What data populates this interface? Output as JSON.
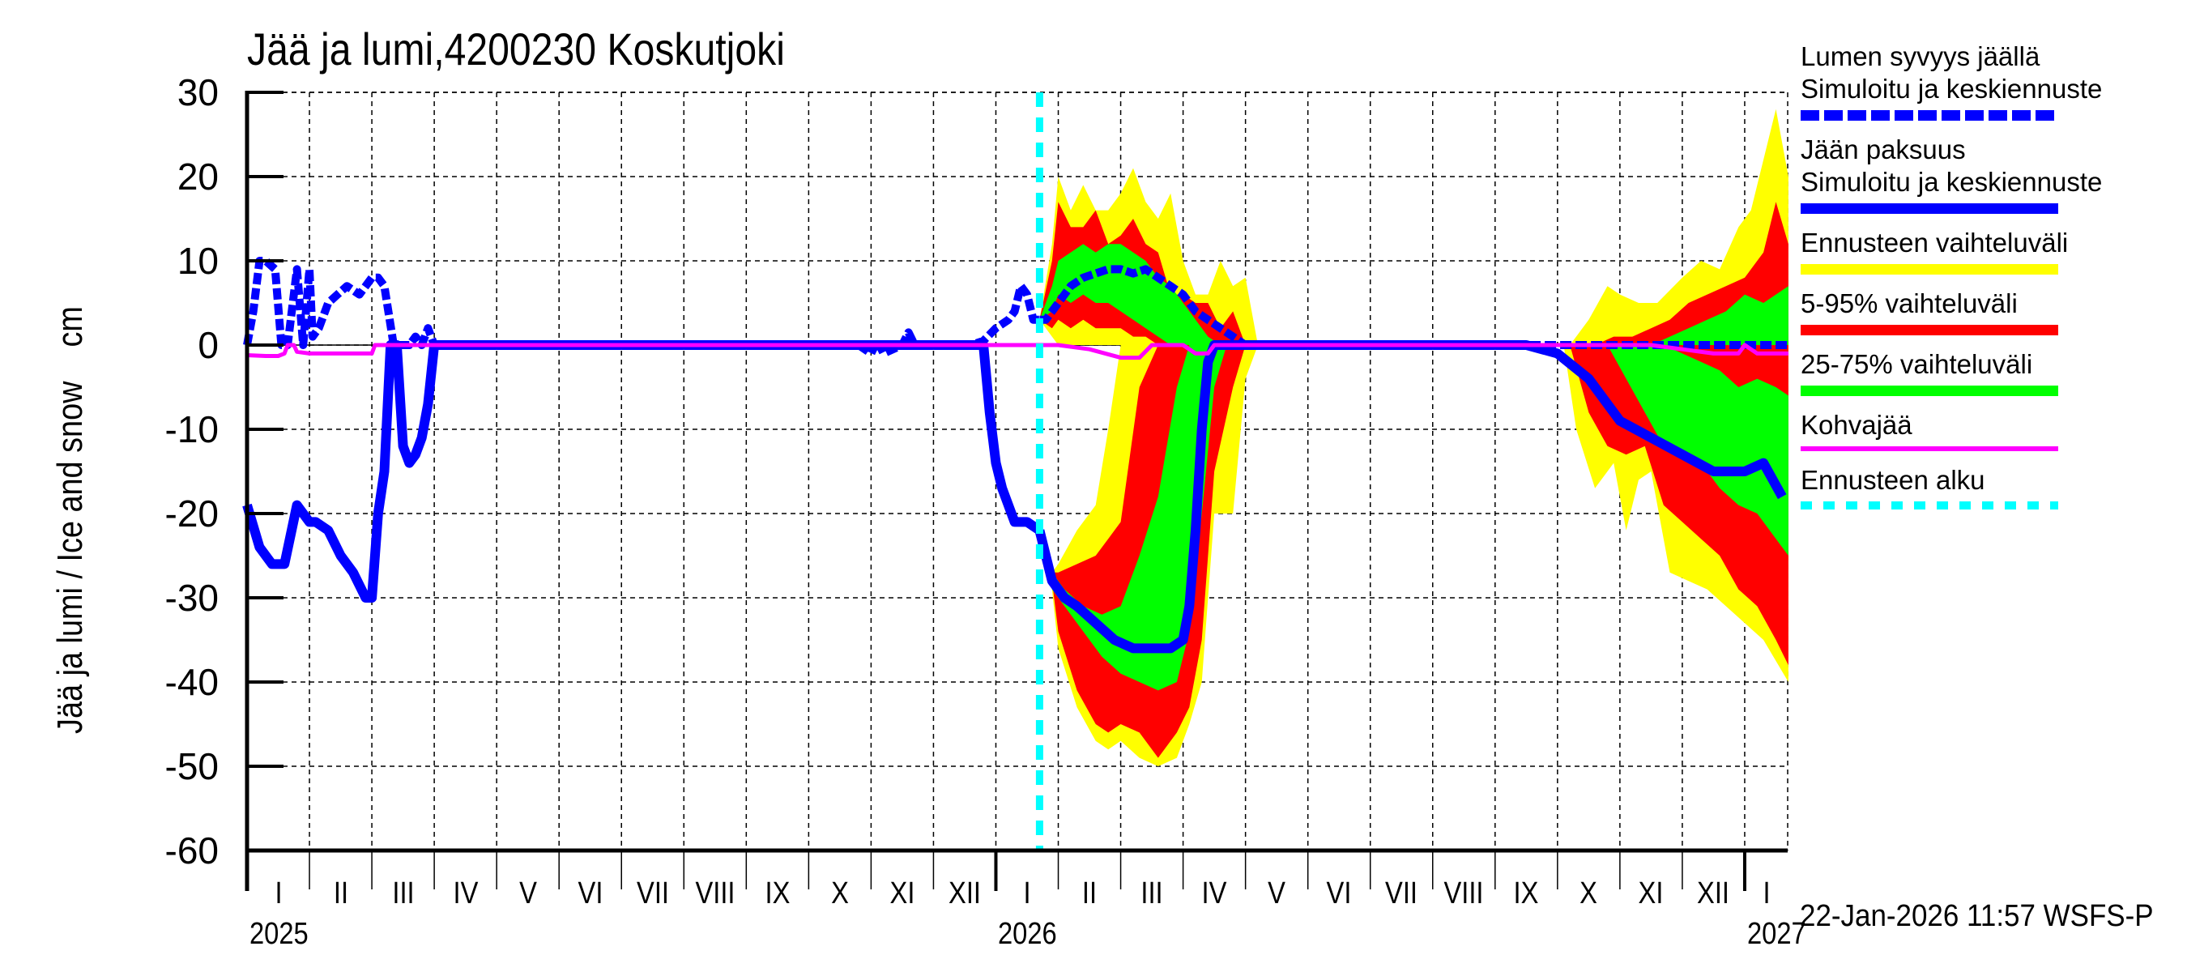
{
  "title": "Jää ja lumi,4200230 Koskutjoki",
  "ylabel": "Jää ja lumi / Ice and snow    cm",
  "timestamp": "22-Jan-2026 11:57 WSFS-P",
  "legend": [
    {
      "label1": "Lumen syvyys jäällä",
      "label2": "Simuloitu ja keskiennuste",
      "color": "#0000ff",
      "style": "dashed"
    },
    {
      "label1": "Jään paksuus",
      "label2": "Simuloitu ja keskiennuste",
      "color": "#0000ff",
      "style": "solid"
    },
    {
      "label1": "Ennusteen vaihteluväli",
      "label2": "",
      "color": "#ffff00",
      "style": "solid"
    },
    {
      "label1": "5-95% vaihteluväli",
      "label2": "",
      "color": "#ff0000",
      "style": "solid"
    },
    {
      "label1": "25-75% vaihteluväli",
      "label2": "",
      "color": "#00ff00",
      "style": "solid"
    },
    {
      "label1": "Kohvajää",
      "label2": "",
      "color": "#ff00ff",
      "style": "thin"
    },
    {
      "label1": "Ennusteen alku",
      "label2": "",
      "color": "#00ffff",
      "style": "dotted"
    }
  ],
  "chart_data": {
    "type": "area",
    "title": "Jää ja lumi,4200230 Koskutjoki",
    "xlabel": "",
    "ylabel": "Jää ja lumi / Ice and snow    cm",
    "ylim": [
      -60,
      30
    ],
    "yticks": [
      30,
      20,
      10,
      0,
      -10,
      -20,
      -30,
      -40,
      -50,
      -60
    ],
    "grid": true,
    "legend_position": "right",
    "x_unit": "months since 2025-01-01",
    "xlim": [
      0,
      24.7
    ],
    "month_labels": [
      "I",
      "II",
      "III",
      "IV",
      "V",
      "VI",
      "VII",
      "VIII",
      "IX",
      "X",
      "XI",
      "XII",
      "I",
      "II",
      "III",
      "IV",
      "V",
      "VI",
      "VII",
      "VIII",
      "IX",
      "X",
      "XI",
      "XII",
      "I"
    ],
    "year_labels": [
      {
        "label": "2025",
        "x": 0
      },
      {
        "label": "2026",
        "x": 12
      },
      {
        "label": "2027",
        "x": 24
      }
    ],
    "forecast_start": 12.7,
    "series": [
      {
        "name": "Lumen syvyys jäällä (simuloitu)",
        "color": "#0000ff",
        "style": "dashed",
        "x": [
          0,
          0.1,
          0.2,
          0.3,
          0.45,
          0.55,
          0.65,
          0.8,
          0.9,
          1.0,
          1.05,
          1.15,
          1.3,
          1.45,
          1.6,
          1.8,
          2.0,
          2.1,
          2.2,
          2.35,
          2.5,
          2.6,
          2.7,
          2.8,
          2.9,
          3.0,
          3.2,
          3.5,
          4.5,
          6,
          8,
          9,
          9.8,
          10.0,
          10.1,
          10.2,
          10.5,
          10.6,
          10.7,
          11.0,
          11.4,
          11.6,
          11.8,
          12.0,
          12.2,
          12.3,
          12.4,
          12.5,
          12.6,
          12.7
        ],
        "y": [
          0,
          4,
          10,
          10,
          9,
          0,
          0,
          9,
          0,
          9,
          1,
          2,
          5,
          6,
          7,
          6,
          8,
          8,
          7,
          0,
          0,
          0,
          1,
          0,
          2,
          0,
          0,
          0,
          0,
          0,
          0,
          0,
          0,
          -1,
          0.5,
          -1,
          0,
          1.5,
          0,
          0,
          0,
          0,
          0.5,
          2,
          3,
          4,
          7,
          6,
          3,
          3
        ]
      },
      {
        "name": "Lumen syvyys jäällä (keskiennuste)",
        "color": "#0000ff",
        "style": "dashed",
        "x": [
          12.7,
          12.8,
          13.0,
          13.2,
          13.4,
          13.6,
          13.8,
          14.0,
          14.2,
          14.4,
          14.6,
          14.8,
          15.0,
          15.2,
          15.4,
          15.6,
          15.8,
          16.0,
          16.2,
          24,
          24.7
        ],
        "y": [
          3,
          3,
          5,
          7,
          8,
          8.5,
          9,
          9,
          8.5,
          9,
          8,
          7,
          6,
          4,
          3,
          2,
          1,
          0,
          0,
          0,
          0
        ]
      },
      {
        "name": "Jään paksuus (simuloitu)",
        "color": "#0000ff",
        "style": "solid",
        "x": [
          0,
          0.2,
          0.4,
          0.6,
          0.8,
          1.0,
          1.1,
          1.3,
          1.5,
          1.7,
          1.9,
          2.0,
          2.1,
          2.2,
          2.3,
          2.4,
          2.5,
          2.6,
          2.7,
          2.8,
          2.9,
          3.0,
          3.1,
          3.2,
          3.3,
          3.5,
          11.5,
          11.8,
          11.9,
          12.0,
          12.1,
          12.3,
          12.5,
          12.7
        ],
        "y": [
          -19,
          -24,
          -26,
          -26,
          -19,
          -21,
          -21,
          -22,
          -25,
          -27,
          -30,
          -30,
          -20,
          -15,
          0,
          0,
          -12,
          -14,
          -13,
          -11,
          -7,
          0,
          0,
          0,
          0,
          0,
          0,
          0,
          -8,
          -14,
          -17,
          -21,
          -21,
          -22
        ]
      },
      {
        "name": "Jään paksuus (keskiennuste)",
        "color": "#0000ff",
        "style": "solid",
        "x": [
          12.7,
          12.9,
          13.1,
          13.3,
          13.6,
          13.9,
          14.2,
          14.5,
          14.8,
          15.0,
          15.1,
          15.2,
          15.3,
          15.4,
          15.5,
          15.6,
          16.0,
          20.5,
          21.0,
          21.5,
          22.0,
          22.5,
          23.0,
          23.5,
          24.0,
          24.3,
          24.6
        ],
        "y": [
          -22,
          -28,
          -30,
          -31,
          -33,
          -35,
          -36,
          -36,
          -36,
          -35,
          -31,
          -22,
          -10,
          -2,
          0,
          0,
          0,
          0,
          -1,
          -4,
          -9,
          -11,
          -13,
          -15,
          -15,
          -14,
          -18
        ]
      },
      {
        "name": "Kohvajää",
        "color": "#ff00ff",
        "style": "thin",
        "x": [
          0,
          0.3,
          0.5,
          0.6,
          0.65,
          0.75,
          0.8,
          1.0,
          1.8,
          2.0,
          2.05,
          2.1,
          13.0,
          13.5,
          14.0,
          14.3,
          14.5,
          14.7,
          15.0,
          15.2,
          15.4,
          15.5,
          15.6,
          22.5,
          23.0,
          23.5,
          23.9,
          24.0,
          24.2,
          24.7
        ],
        "y": [
          -1.2,
          -1.3,
          -1.3,
          -1.0,
          0,
          0,
          -0.8,
          -1.0,
          -1.0,
          -1.0,
          0,
          0,
          0,
          -0.5,
          -1.5,
          -1.5,
          0,
          0,
          0,
          -1.0,
          -1.0,
          0,
          0,
          0,
          -0.5,
          -1.0,
          -1.0,
          0,
          -1.0,
          -1.0
        ]
      }
    ],
    "bands": [
      {
        "name": "Ennusteen vaihteluväli (snow)",
        "color": "#ffff00",
        "x": [
          12.7,
          12.9,
          13.0,
          13.2,
          13.4,
          13.6,
          13.8,
          14.0,
          14.2,
          14.4,
          14.6,
          14.8,
          15.0,
          15.2,
          15.4,
          15.6,
          15.8,
          16.0,
          16.2
        ],
        "upper": [
          3,
          12,
          20,
          16,
          19,
          16,
          16,
          18,
          21,
          17,
          15,
          18,
          10,
          6,
          6,
          10,
          7,
          8,
          0
        ],
        "lower": [
          3,
          1,
          0,
          0,
          0,
          0,
          0,
          0,
          0,
          0,
          0,
          0,
          0,
          0,
          0,
          0,
          0,
          0,
          0
        ]
      },
      {
        "name": "5-95% vaihteluväli (snow)",
        "color": "#ff0000",
        "x": [
          12.7,
          12.9,
          13.0,
          13.2,
          13.4,
          13.6,
          13.8,
          14.0,
          14.2,
          14.4,
          14.6,
          14.8,
          15.0,
          15.2,
          15.4,
          15.6,
          15.8,
          16.0
        ],
        "upper": [
          3,
          10,
          17,
          14,
          14,
          16,
          12,
          13,
          15,
          12,
          11,
          6,
          6,
          5,
          5,
          2,
          4,
          0
        ],
        "lower": [
          3,
          2,
          3,
          2,
          3,
          2,
          2,
          2,
          1,
          1,
          0,
          0,
          0,
          0,
          0,
          0,
          0,
          0
        ]
      },
      {
        "name": "25-75% vaihteluväli (snow)",
        "color": "#00ff00",
        "x": [
          12.7,
          12.9,
          13.0,
          13.2,
          13.4,
          13.6,
          13.8,
          14.0,
          14.2,
          14.4,
          14.6,
          14.8,
          15.0,
          15.2,
          15.4,
          15.6
        ],
        "upper": [
          3,
          7,
          10,
          11,
          12,
          11,
          12,
          12,
          11,
          10,
          8,
          7,
          5,
          3,
          1,
          0
        ],
        "lower": [
          3,
          4,
          6,
          5,
          6,
          5,
          5,
          4,
          3,
          2,
          1,
          0,
          0,
          0,
          0,
          0
        ]
      },
      {
        "name": "Ennusteen vaihteluväli (ice)",
        "color": "#ffff00",
        "x": [
          12.7,
          12.9,
          13.0,
          13.3,
          13.6,
          13.8,
          14.0,
          14.3,
          14.6,
          14.9,
          15.1,
          15.3,
          15.5,
          15.8,
          16.0,
          16.2
        ],
        "upper": [
          -22,
          -27,
          -26,
          -22,
          -19,
          -10,
          0,
          0,
          0,
          0,
          0,
          0,
          0,
          0,
          0,
          0
        ],
        "lower": [
          -22,
          -29,
          -36,
          -43,
          -47,
          -48,
          -47,
          -49,
          -50,
          -49,
          -45,
          -40,
          -20,
          -20,
          -4,
          0
        ]
      },
      {
        "name": "5-95% vaihteluväli (ice)",
        "color": "#ff0000",
        "x": [
          12.7,
          12.9,
          13.0,
          13.3,
          13.6,
          13.8,
          14.0,
          14.3,
          14.6,
          14.9,
          15.1,
          15.3,
          15.5,
          15.8,
          16.0
        ],
        "upper": [
          -22,
          -27,
          -27,
          -26,
          -25,
          -23,
          -21,
          -5,
          0,
          0,
          0,
          0,
          0,
          0,
          0
        ],
        "lower": [
          -22,
          -28,
          -34,
          -41,
          -45,
          -46,
          -45,
          -46,
          -49,
          -46,
          -43,
          -35,
          -15,
          -5,
          0
        ]
      },
      {
        "name": "25-75% vaihteluväli (ice)",
        "color": "#00ff00",
        "x": [
          12.7,
          12.9,
          13.1,
          13.4,
          13.7,
          14.0,
          14.3,
          14.6,
          14.9,
          15.1,
          15.3,
          15.5,
          15.7
        ],
        "upper": [
          -22,
          -27,
          -29,
          -31,
          -32,
          -31,
          -25,
          -18,
          -5,
          0,
          0,
          0,
          0
        ],
        "lower": [
          -22,
          -29,
          -31,
          -34,
          -37,
          -39,
          -40,
          -41,
          -40,
          -34,
          -20,
          -5,
          0
        ]
      },
      {
        "name": "Ennusteen vaihteluväli (2027 snow)",
        "color": "#ffff00",
        "x": [
          21.2,
          21.5,
          21.8,
          22.0,
          22.3,
          22.6,
          23.0,
          23.3,
          23.6,
          23.9,
          24.1,
          24.3,
          24.5,
          24.7
        ],
        "upper": [
          0,
          3,
          7,
          6,
          5,
          5,
          8,
          10,
          9,
          14,
          16,
          22,
          28,
          20
        ],
        "lower": [
          0,
          0,
          0,
          0,
          0,
          0,
          0,
          0,
          0,
          0,
          0,
          0,
          0,
          0
        ]
      },
      {
        "name": "5-95% vaihteluväli (2027 snow)",
        "color": "#ff0000",
        "x": [
          21.3,
          21.6,
          21.9,
          22.2,
          22.5,
          22.8,
          23.1,
          23.4,
          23.7,
          24.0,
          24.3,
          24.5,
          24.7
        ],
        "upper": [
          0,
          0,
          1,
          1,
          2,
          3,
          5,
          6,
          7,
          8,
          11,
          17,
          12
        ],
        "lower": [
          0,
          0,
          0,
          0,
          0,
          0,
          0,
          0,
          0,
          0,
          0,
          0,
          0
        ]
      },
      {
        "name": "25-75% vaihteluväli (2027 snow)",
        "color": "#00ff00",
        "x": [
          22.2,
          22.5,
          22.8,
          23.1,
          23.4,
          23.7,
          24.0,
          24.3,
          24.7
        ],
        "upper": [
          0,
          0,
          1,
          2,
          3,
          4,
          6,
          5,
          7
        ],
        "lower": [
          0,
          0,
          0,
          0,
          0,
          0,
          0,
          0,
          0
        ]
      },
      {
        "name": "Ennusteen vaihteluväli (2027 ice)",
        "color": "#ffff00",
        "x": [
          21.1,
          21.3,
          21.6,
          21.9,
          22.1,
          22.3,
          22.5,
          22.8,
          23.1,
          23.4,
          23.7,
          24.0,
          24.3,
          24.7
        ],
        "upper": [
          0,
          0,
          0,
          0,
          0,
          0,
          0,
          0,
          0,
          0,
          0,
          0,
          0,
          0
        ],
        "lower": [
          0,
          -10,
          -17,
          -14,
          -22,
          -16,
          -15,
          -27,
          -28,
          -29,
          -31,
          -33,
          -35,
          -40
        ]
      },
      {
        "name": "5-95% vaihteluväli (2027 ice)",
        "color": "#ff0000",
        "x": [
          21.2,
          21.5,
          21.8,
          22.1,
          22.4,
          22.7,
          23.0,
          23.3,
          23.6,
          23.9,
          24.2,
          24.5,
          24.7
        ],
        "upper": [
          0,
          0,
          0,
          0,
          0,
          0,
          0,
          0,
          0,
          0,
          0,
          0,
          0
        ],
        "lower": [
          0,
          -8,
          -12,
          -13,
          -12,
          -19,
          -21,
          -23,
          -25,
          -29,
          -31,
          -35,
          -38
        ]
      },
      {
        "name": "25-75% vaihteluväli (2027 ice)",
        "color": "#00ff00",
        "x": [
          21.8,
          22.1,
          22.4,
          22.7,
          23.0,
          23.3,
          23.6,
          23.9,
          24.2,
          24.5,
          24.7
        ],
        "upper": [
          0,
          0,
          0,
          0,
          -1,
          -2,
          -3,
          -5,
          -4,
          -5,
          -6
        ],
        "lower": [
          0,
          -4,
          -8,
          -12,
          -13,
          -14,
          -17,
          -19,
          -20,
          -23,
          -25
        ]
      }
    ]
  }
}
